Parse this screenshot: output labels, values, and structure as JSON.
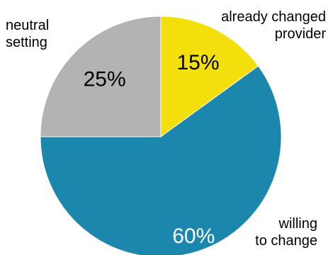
{
  "chart_data": {
    "type": "pie",
    "categories": [
      "already changed provider",
      "willing to change",
      "neutral setting"
    ],
    "values": [
      15,
      60,
      25
    ],
    "value_labels": [
      "15%",
      "60%",
      "25%"
    ],
    "colors": [
      "#f2df0b",
      "#1b87ad",
      "#b3b3b3"
    ],
    "value_label_colors": [
      "#000000",
      "#ffffff",
      "#000000"
    ],
    "start_angle": "12 o'clock",
    "direction": "clockwise",
    "legend": "none (slices labeled directly)"
  },
  "labels": {
    "already_changed_line1": "already changed",
    "already_changed_line2": "provider",
    "willing_line1": "willing",
    "willing_line2": "to change",
    "neutral_line1": "neutral",
    "neutral_line2": "setting"
  }
}
